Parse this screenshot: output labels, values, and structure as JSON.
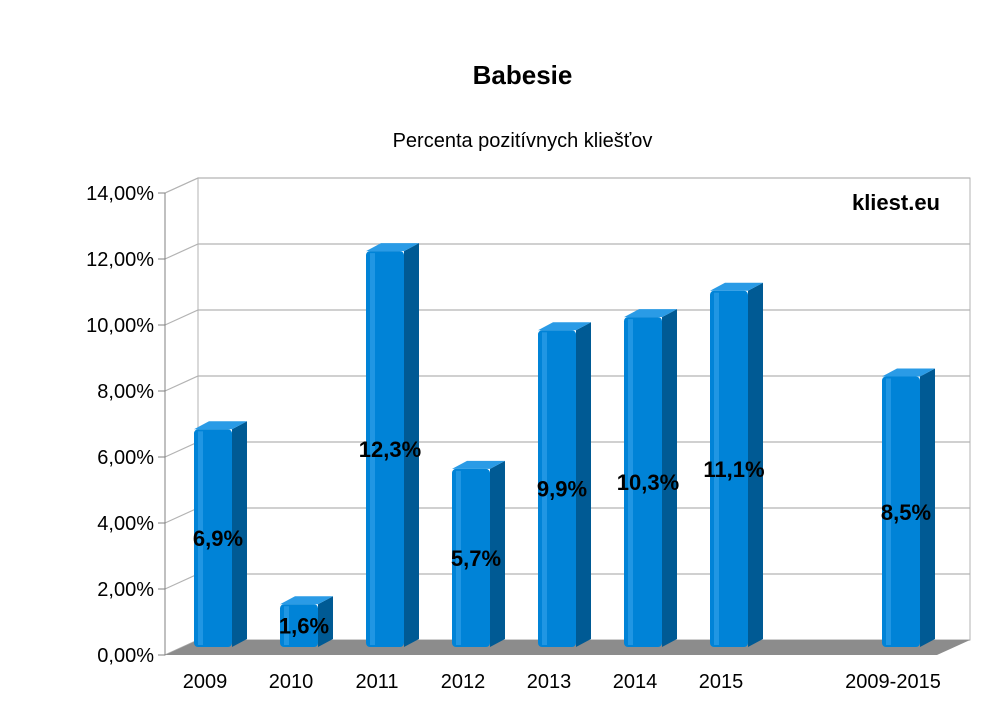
{
  "chart_data": {
    "type": "bar",
    "title": "Babesie",
    "subtitle": "Percenta pozitívnych kliešťov",
    "watermark": "kliest.eu",
    "categories": [
      "2009",
      "2010",
      "2011",
      "2012",
      "2013",
      "2014",
      "2015",
      "2009-2015"
    ],
    "values": [
      6.9,
      1.6,
      12.3,
      5.7,
      9.9,
      10.3,
      11.1,
      8.5
    ],
    "data_labels": [
      "6,9%",
      "1,6%",
      "12,3%",
      "5,7%",
      "9,9%",
      "10,3%",
      "11,1%",
      "8,5%"
    ],
    "y_ticks": [
      "0,00%",
      "2,00%",
      "4,00%",
      "6,00%",
      "8,00%",
      "10,00%",
      "12,00%",
      "14,00%"
    ],
    "ylim": [
      0,
      14
    ],
    "grid": true,
    "colors": {
      "bar_front": "#0083d7",
      "bar_side": "#005a94",
      "bar_top": "#2a9be6",
      "floor": "#8c8c8c",
      "grid": "#b3b3b3"
    }
  }
}
